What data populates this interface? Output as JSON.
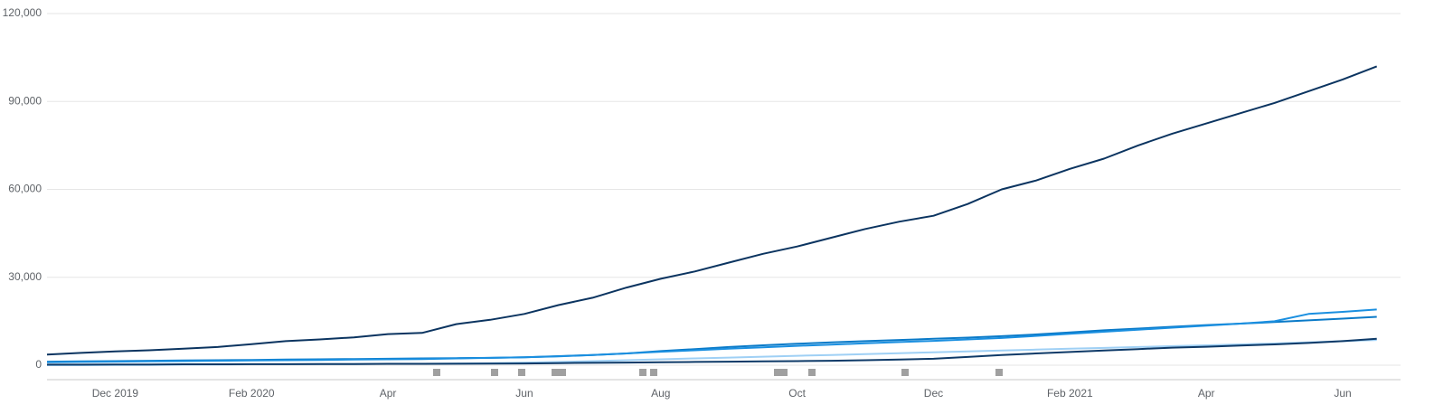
{
  "chart_data": {
    "type": "line",
    "categories": [
      null,
      null,
      "Dec 2019",
      null,
      null,
      null,
      "Feb 2020",
      null,
      null,
      null,
      "Apr",
      null,
      null,
      null,
      "Jun",
      null,
      null,
      null,
      "Aug",
      null,
      null,
      null,
      "Oct",
      null,
      null,
      null,
      "Dec",
      null,
      null,
      null,
      "Feb 2021",
      null,
      null,
      null,
      "Apr",
      null,
      null,
      null,
      "Jun",
      null
    ],
    "series": [
      {
        "color": "#0b3460",
        "values": [
          3600,
          4200,
          4700,
          5100,
          5600,
          6200,
          7200,
          8200,
          8800,
          9500,
          10600,
          11000,
          14000,
          15500,
          17500,
          20500,
          23000,
          26500,
          29500,
          32000,
          35000,
          38000,
          40500,
          43500,
          46500,
          49000,
          51000,
          55000,
          60000,
          63000,
          67000,
          70500,
          75000,
          79000,
          82500,
          86000,
          89500,
          93500,
          97500,
          102000
        ]
      },
      {
        "color": "#1a8fe0",
        "values": [
          1000,
          1100,
          1200,
          1300,
          1400,
          1500,
          1600,
          1700,
          1800,
          1900,
          2000,
          2100,
          2300,
          2500,
          2700,
          3000,
          3500,
          4000,
          4600,
          5100,
          5600,
          6100,
          6600,
          7000,
          7500,
          7900,
          8300,
          8800,
          9300,
          10000,
          10700,
          11400,
          12100,
          12800,
          13500,
          14200,
          15000,
          17500,
          18200,
          19000
        ]
      },
      {
        "color": "#0a7ac8",
        "values": [
          1200,
          1300,
          1400,
          1500,
          1600,
          1700,
          1800,
          1900,
          2000,
          2100,
          2200,
          2300,
          2400,
          2500,
          2700,
          3100,
          3500,
          4000,
          4800,
          5500,
          6200,
          6800,
          7300,
          7800,
          8200,
          8600,
          9000,
          9400,
          9900,
          10500,
          11200,
          11900,
          12500,
          13100,
          13700,
          14200,
          14700,
          15300,
          15900,
          16500
        ]
      },
      {
        "color": "#0e3a68",
        "values": [
          200,
          200,
          250,
          250,
          300,
          300,
          350,
          350,
          400,
          400,
          450,
          450,
          500,
          550,
          600,
          700,
          800,
          900,
          1000,
          1100,
          1200,
          1300,
          1400,
          1500,
          1700,
          1900,
          2200,
          2800,
          3500,
          4000,
          4500,
          5000,
          5500,
          6000,
          6300,
          6700,
          7100,
          7600,
          8200,
          9000
        ]
      },
      {
        "color": "#9fd0f5",
        "values": [
          0,
          0,
          100,
          100,
          200,
          200,
          300,
          300,
          400,
          400,
          500,
          500,
          600,
          700,
          900,
          1100,
          1400,
          1700,
          2000,
          2300,
          2600,
          2900,
          3200,
          3500,
          3800,
          4100,
          4400,
          4700,
          5000,
          5300,
          5600,
          5900,
          6200,
          6500,
          6800,
          7100,
          7400,
          7800,
          8200,
          8600
        ]
      }
    ],
    "ylim": [
      0,
      120000
    ],
    "yticks": [
      0,
      {
        "value": 30000,
        "label": "30,000"
      },
      {
        "value": 60000,
        "label": "60,000"
      },
      {
        "value": 90000,
        "label": "90,000"
      },
      {
        "value": 120000,
        "label": "120,000"
      }
    ],
    "grid": true
  }
}
